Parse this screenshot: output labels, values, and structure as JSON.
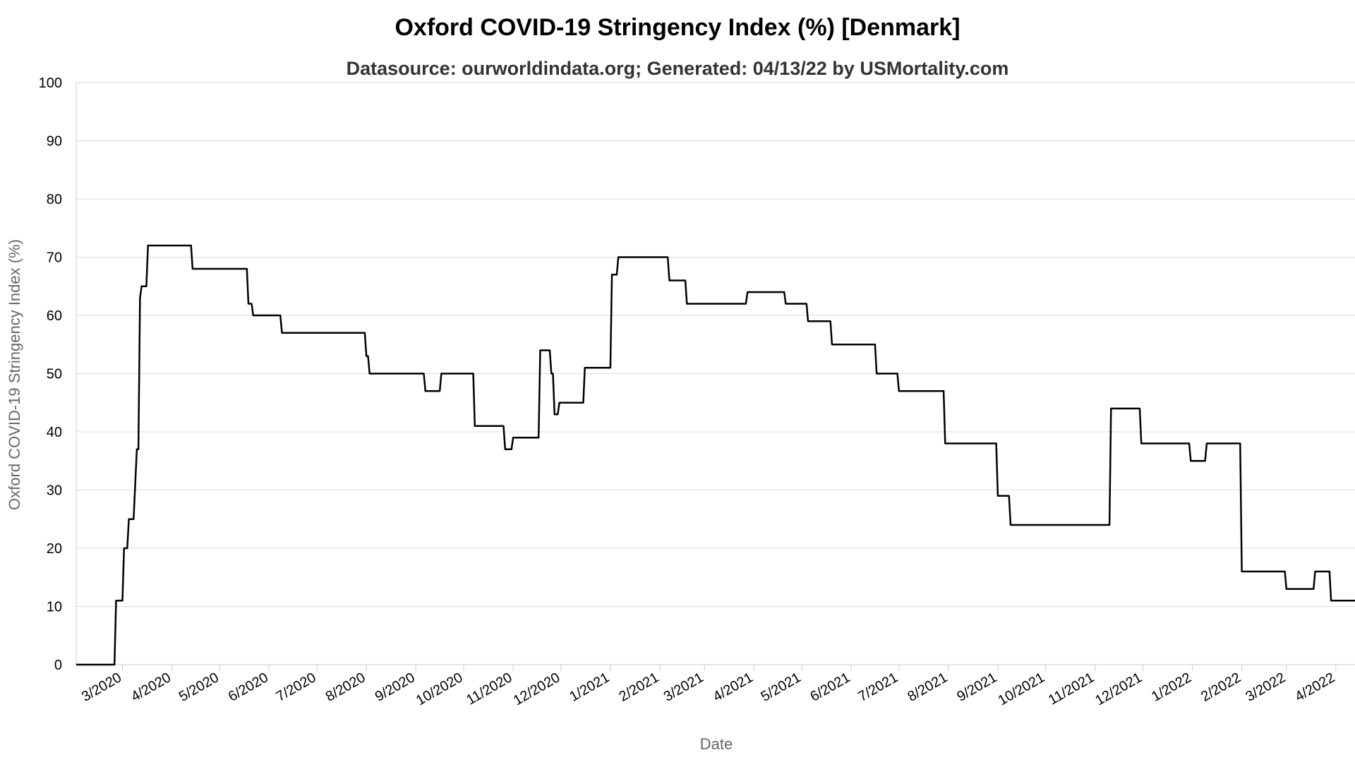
{
  "chart_data": {
    "type": "line",
    "title": "Oxford COVID-19 Stringency Index (%) [Denmark]",
    "subtitle": "Datasource: ourworldindata.org; Generated: 04/13/22 by USMortality.com",
    "xlabel": "Date",
    "ylabel": "Oxford COVID-19 Stringency Index (%)",
    "ylim": [
      0,
      100
    ],
    "yticks": [
      0,
      10,
      20,
      30,
      40,
      50,
      60,
      70,
      80,
      90,
      100
    ],
    "xlim": [
      "2020-02-01",
      "2022-04-13"
    ],
    "grid": true,
    "xticks": [
      {
        "date": "2020-03-01",
        "label": "3/2020"
      },
      {
        "date": "2020-04-01",
        "label": "4/2020"
      },
      {
        "date": "2020-05-01",
        "label": "5/2020"
      },
      {
        "date": "2020-06-01",
        "label": "6/2020"
      },
      {
        "date": "2020-07-01",
        "label": "7/2020"
      },
      {
        "date": "2020-08-01",
        "label": "8/2020"
      },
      {
        "date": "2020-09-01",
        "label": "9/2020"
      },
      {
        "date": "2020-10-01",
        "label": "10/2020"
      },
      {
        "date": "2020-11-01",
        "label": "11/2020"
      },
      {
        "date": "2020-12-01",
        "label": "12/2020"
      },
      {
        "date": "2021-01-01",
        "label": "1/2021"
      },
      {
        "date": "2021-02-01",
        "label": "2/2021"
      },
      {
        "date": "2021-03-01",
        "label": "3/2021"
      },
      {
        "date": "2021-04-01",
        "label": "4/2021"
      },
      {
        "date": "2021-05-01",
        "label": "5/2021"
      },
      {
        "date": "2021-06-01",
        "label": "6/2021"
      },
      {
        "date": "2021-07-01",
        "label": "7/2021"
      },
      {
        "date": "2021-08-01",
        "label": "8/2021"
      },
      {
        "date": "2021-09-01",
        "label": "9/2021"
      },
      {
        "date": "2021-10-01",
        "label": "10/2021"
      },
      {
        "date": "2021-11-01",
        "label": "11/2021"
      },
      {
        "date": "2021-12-01",
        "label": "12/2021"
      },
      {
        "date": "2022-01-01",
        "label": "1/2022"
      },
      {
        "date": "2022-02-01",
        "label": "2/2022"
      },
      {
        "date": "2022-03-01",
        "label": "3/2022"
      },
      {
        "date": "2022-04-01",
        "label": "4/2022"
      }
    ],
    "series": [
      {
        "name": "",
        "color": "#000000",
        "points": [
          [
            "2020-02-01",
            0
          ],
          [
            "2020-02-25",
            0
          ],
          [
            "2020-02-26",
            11
          ],
          [
            "2020-03-01",
            11
          ],
          [
            "2020-03-02",
            20
          ],
          [
            "2020-03-04",
            20
          ],
          [
            "2020-03-05",
            25
          ],
          [
            "2020-03-08",
            25
          ],
          [
            "2020-03-10",
            37
          ],
          [
            "2020-03-11",
            37
          ],
          [
            "2020-03-12",
            63
          ],
          [
            "2020-03-13",
            65
          ],
          [
            "2020-03-16",
            65
          ],
          [
            "2020-03-17",
            72
          ],
          [
            "2020-04-13",
            72
          ],
          [
            "2020-04-14",
            68
          ],
          [
            "2020-05-18",
            68
          ],
          [
            "2020-05-19",
            62
          ],
          [
            "2020-05-21",
            62
          ],
          [
            "2020-05-22",
            60
          ],
          [
            "2020-06-08",
            60
          ],
          [
            "2020-06-09",
            57
          ],
          [
            "2020-07-31",
            57
          ],
          [
            "2020-08-01",
            53
          ],
          [
            "2020-08-02",
            53
          ],
          [
            "2020-08-03",
            50
          ],
          [
            "2020-09-06",
            50
          ],
          [
            "2020-09-07",
            47
          ],
          [
            "2020-09-16",
            47
          ],
          [
            "2020-09-17",
            50
          ],
          [
            "2020-10-07",
            50
          ],
          [
            "2020-10-08",
            41
          ],
          [
            "2020-10-26",
            41
          ],
          [
            "2020-10-27",
            37
          ],
          [
            "2020-10-31",
            37
          ],
          [
            "2020-11-01",
            39
          ],
          [
            "2020-11-17",
            39
          ],
          [
            "2020-11-18",
            54
          ],
          [
            "2020-11-24",
            54
          ],
          [
            "2020-11-25",
            50
          ],
          [
            "2020-11-26",
            50
          ],
          [
            "2020-11-27",
            43
          ],
          [
            "2020-11-29",
            43
          ],
          [
            "2020-11-30",
            45
          ],
          [
            "2020-12-15",
            45
          ],
          [
            "2020-12-16",
            51
          ],
          [
            "2021-01-01",
            51
          ],
          [
            "2021-01-02",
            67
          ],
          [
            "2021-01-05",
            67
          ],
          [
            "2021-01-06",
            70
          ],
          [
            "2021-02-06",
            70
          ],
          [
            "2021-02-07",
            66
          ],
          [
            "2021-02-17",
            66
          ],
          [
            "2021-02-18",
            62
          ],
          [
            "2021-03-27",
            62
          ],
          [
            "2021-03-28",
            64
          ],
          [
            "2021-04-20",
            64
          ],
          [
            "2021-04-21",
            62
          ],
          [
            "2021-05-04",
            62
          ],
          [
            "2021-05-05",
            59
          ],
          [
            "2021-05-19",
            59
          ],
          [
            "2021-05-20",
            55
          ],
          [
            "2021-06-16",
            55
          ],
          [
            "2021-06-17",
            50
          ],
          [
            "2021-06-30",
            50
          ],
          [
            "2021-07-01",
            47
          ],
          [
            "2021-07-29",
            47
          ],
          [
            "2021-07-30",
            38
          ],
          [
            "2021-08-31",
            38
          ],
          [
            "2021-09-01",
            29
          ],
          [
            "2021-09-08",
            29
          ],
          [
            "2021-09-09",
            24
          ],
          [
            "2021-11-10",
            24
          ],
          [
            "2021-11-11",
            44
          ],
          [
            "2021-11-29",
            44
          ],
          [
            "2021-11-30",
            38
          ],
          [
            "2021-12-30",
            38
          ],
          [
            "2021-12-31",
            35
          ],
          [
            "2022-01-09",
            35
          ],
          [
            "2022-01-10",
            38
          ],
          [
            "2022-01-31",
            38
          ],
          [
            "2022-02-01",
            16
          ],
          [
            "2022-02-28",
            16
          ],
          [
            "2022-03-01",
            13
          ],
          [
            "2022-03-18",
            13
          ],
          [
            "2022-03-19",
            16
          ],
          [
            "2022-03-28",
            16
          ],
          [
            "2022-03-29",
            11
          ],
          [
            "2022-04-13",
            11
          ]
        ]
      }
    ]
  }
}
